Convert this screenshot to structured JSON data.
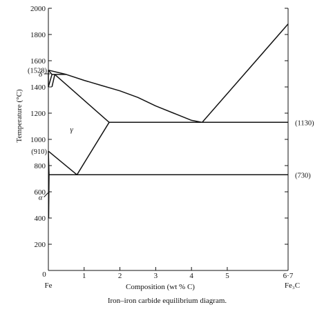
{
  "chart_data": {
    "type": "line",
    "title": "",
    "xlabel": "Composition (wt % C)",
    "ylabel": "Temperature (°C)",
    "caption": "Iron–iron carbide equilibrium diagram.",
    "xlim": [
      0,
      6.7
    ],
    "ylim": [
      0,
      2000
    ],
    "x_ticks": [
      {
        "value": 1,
        "label": "1"
      },
      {
        "value": 2,
        "label": "2"
      },
      {
        "value": 3,
        "label": "3"
      },
      {
        "value": 4,
        "label": "4"
      },
      {
        "value": 5,
        "label": "5"
      },
      {
        "value": 6.7,
        "label": "6·7"
      }
    ],
    "x_origin_label": "0",
    "y_ticks": [
      {
        "value": 200,
        "label": "200"
      },
      {
        "value": 400,
        "label": "400"
      },
      {
        "value": 600,
        "label": "600"
      },
      {
        "value": 800,
        "label": "800"
      },
      {
        "value": 1000,
        "label": "1000"
      },
      {
        "value": 1200,
        "label": "1200"
      },
      {
        "value": 1400,
        "label": "1400"
      },
      {
        "value": 1600,
        "label": "1600"
      },
      {
        "value": 1800,
        "label": "1800"
      },
      {
        "value": 2000,
        "label": "2000"
      }
    ],
    "end_labels": {
      "left": "Fe",
      "right": "Fe₃C"
    },
    "annotations": [
      {
        "text": "(1528)",
        "x": 0,
        "y": 1528,
        "side": "left"
      },
      {
        "text": "(910)",
        "x": 0,
        "y": 910,
        "side": "left"
      },
      {
        "text": "(1130)",
        "x": 6.7,
        "y": 1130,
        "side": "right"
      },
      {
        "text": "(730)",
        "x": 6.7,
        "y": 730,
        "side": "right"
      }
    ],
    "phase_labels": [
      {
        "text": "δ",
        "x": -0.22,
        "y": 1500,
        "arrow_to": [
          0.05,
          1500
        ]
      },
      {
        "text": "γ",
        "x": 0.65,
        "y": 1080
      },
      {
        "text": "α",
        "x": -0.22,
        "y": 560,
        "arrow_to": [
          0.02,
          600
        ]
      }
    ],
    "series": [
      {
        "id": "liquidus-left",
        "points": [
          [
            0,
            1528
          ],
          [
            0.5,
            1495
          ],
          [
            1.0,
            1450
          ],
          [
            1.5,
            1410
          ],
          [
            2.0,
            1370
          ],
          [
            2.5,
            1320
          ],
          [
            3.0,
            1255
          ],
          [
            3.5,
            1200
          ],
          [
            4.0,
            1145
          ],
          [
            4.3,
            1130
          ]
        ]
      },
      {
        "id": "liquidus-right",
        "points": [
          [
            4.3,
            1130
          ],
          [
            6.7,
            1880
          ]
        ]
      },
      {
        "id": "peritectic-line",
        "points": [
          [
            0.1,
            1495
          ],
          [
            0.5,
            1495
          ]
        ]
      },
      {
        "id": "delta-boundary",
        "points": [
          [
            0,
            1528
          ],
          [
            0.1,
            1495
          ]
        ]
      },
      {
        "id": "delta-gamma-left",
        "points": [
          [
            0,
            1400
          ],
          [
            0.1,
            1495
          ]
        ]
      },
      {
        "id": "delta-gamma-right",
        "points": [
          [
            0.1,
            1400
          ],
          [
            0.18,
            1495
          ]
        ]
      },
      {
        "id": "delta-left-edge",
        "points": [
          [
            0,
            1400
          ],
          [
            0,
            1528
          ]
        ]
      },
      {
        "id": "solidus",
        "points": [
          [
            0.18,
            1495
          ],
          [
            1.7,
            1130
          ]
        ]
      },
      {
        "id": "eutectic-line",
        "points": [
          [
            1.7,
            1130
          ],
          [
            6.7,
            1130
          ]
        ]
      },
      {
        "id": "acm-line",
        "points": [
          [
            1.7,
            1130
          ],
          [
            0.8,
            730
          ]
        ]
      },
      {
        "id": "a3-line",
        "points": [
          [
            0,
            910
          ],
          [
            0.8,
            730
          ]
        ]
      },
      {
        "id": "eutectoid-line",
        "points": [
          [
            0.02,
            730
          ],
          [
            6.7,
            730
          ]
        ]
      },
      {
        "id": "alpha-solvus",
        "points": [
          [
            0,
            910
          ],
          [
            0.02,
            730
          ],
          [
            0.008,
            400
          ]
        ]
      }
    ]
  }
}
